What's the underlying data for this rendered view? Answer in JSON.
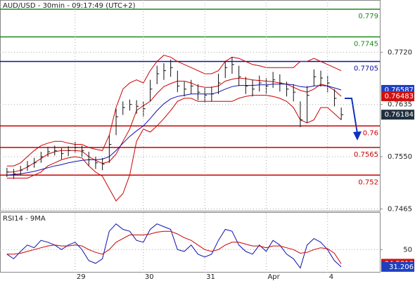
{
  "chart_data": [
    {
      "type": "ohlc",
      "title": "AUD/USD - 30min - 09:17:49 (UTC+2)",
      "ylim": [
        0.7462,
        0.7805
      ],
      "yticks": [
        {
          "value": 0.7465,
          "label": "0.7465"
        },
        {
          "value": 0.755,
          "label": "0.7550"
        },
        {
          "value": 0.7635,
          "label": "0.7635"
        },
        {
          "value": 0.772,
          "label": "0.7720"
        }
      ],
      "grid": true,
      "bar_color": "#111111",
      "high": [
        0.7532,
        0.753,
        0.7535,
        0.7543,
        0.7548,
        0.7558,
        0.7566,
        0.7568,
        0.7564,
        0.7567,
        0.7574,
        0.7568,
        0.7558,
        0.755,
        0.7548,
        0.7585,
        0.7628,
        0.764,
        0.7643,
        0.7642,
        0.764,
        0.7675,
        0.7698,
        0.7702,
        0.7708,
        0.769,
        0.7672,
        0.7675,
        0.7668,
        0.7662,
        0.7664,
        0.7685,
        0.7706,
        0.7712,
        0.7698,
        0.768,
        0.7675,
        0.7682,
        0.7678,
        0.7688,
        0.7684,
        0.7672,
        0.7668,
        0.764,
        0.7665,
        0.7692,
        0.769,
        0.7682,
        0.766,
        0.763
      ],
      "low": [
        0.7517,
        0.7514,
        0.752,
        0.7527,
        0.7532,
        0.754,
        0.755,
        0.7552,
        0.7546,
        0.7551,
        0.7556,
        0.755,
        0.7535,
        0.753,
        0.7528,
        0.754,
        0.7585,
        0.7618,
        0.7625,
        0.762,
        0.7615,
        0.764,
        0.7668,
        0.7675,
        0.768,
        0.7655,
        0.7648,
        0.7652,
        0.7642,
        0.7638,
        0.764,
        0.7652,
        0.7678,
        0.7685,
        0.7665,
        0.7652,
        0.7648,
        0.7656,
        0.7652,
        0.7662,
        0.7656,
        0.7648,
        0.764,
        0.7598,
        0.7605,
        0.7665,
        0.7664,
        0.7655,
        0.7632,
        0.761
      ],
      "close": [
        0.7525,
        0.7522,
        0.7528,
        0.7535,
        0.754,
        0.755,
        0.7558,
        0.756,
        0.7555,
        0.756,
        0.7565,
        0.756,
        0.7545,
        0.754,
        0.7538,
        0.757,
        0.7615,
        0.763,
        0.7635,
        0.7632,
        0.7628,
        0.766,
        0.7685,
        0.769,
        0.7695,
        0.7665,
        0.766,
        0.7665,
        0.7655,
        0.765,
        0.7652,
        0.767,
        0.7695,
        0.77,
        0.768,
        0.7665,
        0.766,
        0.767,
        0.7665,
        0.7675,
        0.767,
        0.766,
        0.7655,
        0.761,
        0.765,
        0.768,
        0.7678,
        0.767,
        0.7645,
        0.76184
      ],
      "series": [
        {
          "color": "#cc0000",
          "values": [
            0.7535,
            0.7535,
            0.754,
            0.755,
            0.756,
            0.7568,
            0.7572,
            0.7575,
            0.7575,
            0.7572,
            0.757,
            0.757,
            0.7565,
            0.7562,
            0.756,
            0.7585,
            0.763,
            0.766,
            0.767,
            0.7675,
            0.767,
            0.769,
            0.7705,
            0.7715,
            0.7712,
            0.7705,
            0.77,
            0.7695,
            0.769,
            0.7685,
            0.7685,
            0.769,
            0.7705,
            0.7712,
            0.771,
            0.7705,
            0.77,
            0.7698,
            0.7695,
            0.7695,
            0.7695,
            0.7695,
            0.7695,
            0.7705,
            0.7705,
            0.771,
            0.7705,
            0.77,
            0.7695,
            0.769
          ]
        },
        {
          "color": "#cc0000",
          "values": [
            0.7525,
            0.7525,
            0.7528,
            0.7533,
            0.754,
            0.7547,
            0.7554,
            0.7558,
            0.756,
            0.756,
            0.756,
            0.7559,
            0.755,
            0.7544,
            0.7539,
            0.7542,
            0.7554,
            0.7575,
            0.7595,
            0.7625,
            0.7633,
            0.764,
            0.7653,
            0.7664,
            0.7669,
            0.7673,
            0.7673,
            0.767,
            0.7665,
            0.7663,
            0.7663,
            0.7665,
            0.7673,
            0.7676,
            0.7678,
            0.7677,
            0.7675,
            0.7674,
            0.7673,
            0.7672,
            0.767,
            0.7668,
            0.7663,
            0.7658,
            0.7655,
            0.766,
            0.7668,
            0.7665,
            0.7658,
            0.76483
          ]
        },
        {
          "color": "#cc0000",
          "values": [
            0.7515,
            0.7515,
            0.7515,
            0.7515,
            0.752,
            0.7525,
            0.7535,
            0.754,
            0.7545,
            0.7548,
            0.755,
            0.7548,
            0.7535,
            0.7525,
            0.7518,
            0.7498,
            0.7478,
            0.749,
            0.752,
            0.7575,
            0.7595,
            0.759,
            0.76,
            0.7612,
            0.7625,
            0.764,
            0.7645,
            0.7645,
            0.764,
            0.764,
            0.764,
            0.764,
            0.764,
            0.764,
            0.7645,
            0.7648,
            0.765,
            0.765,
            0.765,
            0.7648,
            0.7645,
            0.764,
            0.763,
            0.761,
            0.7605,
            0.761,
            0.763,
            0.763,
            0.762,
            0.761
          ]
        },
        {
          "color": "#1010b0",
          "values": [
            0.752,
            0.7521,
            0.7522,
            0.7524,
            0.7526,
            0.7529,
            0.7532,
            0.7535,
            0.7537,
            0.754,
            0.7542,
            0.7544,
            0.7545,
            0.7545,
            0.7546,
            0.755,
            0.756,
            0.7572,
            0.7583,
            0.7592,
            0.76,
            0.7612,
            0.7625,
            0.7636,
            0.7644,
            0.7648,
            0.765,
            0.7652,
            0.7652,
            0.7652,
            0.7652,
            0.7655,
            0.766,
            0.7664,
            0.7666,
            0.7666,
            0.7666,
            0.7667,
            0.7667,
            0.7668,
            0.7668,
            0.7668,
            0.7667,
            0.7664,
            0.7663,
            0.7665,
            0.7666,
            0.7665,
            0.7662,
            0.76587
          ]
        }
      ],
      "levels": [
        {
          "value": 0.779,
          "color": "#1a8a1a"
        },
        {
          "value": 0.7745,
          "color": "#1a8a1a"
        },
        {
          "value": 0.7705,
          "color": "#1010a0"
        },
        {
          "value": 0.76,
          "color": "#cc0000"
        },
        {
          "value": 0.7565,
          "color": "#cc0000"
        },
        {
          "value": 0.752,
          "color": "#cc0000"
        }
      ]
    },
    {
      "type": "line",
      "title": "RSI14 - 9MA",
      "ylim": [
        25,
        90
      ],
      "yticks": [
        50
      ],
      "grid": true,
      "categories": [
        null,
        null,
        null,
        null,
        null,
        null,
        null,
        null,
        null,
        null,
        "29",
        null,
        null,
        null,
        null,
        null,
        null,
        null,
        null,
        null,
        "30",
        null,
        null,
        null,
        null,
        null,
        null,
        null,
        null,
        "31",
        null,
        null,
        null,
        null,
        null,
        null,
        null,
        null,
        "Apr",
        null,
        null,
        null,
        null,
        null,
        null,
        null,
        null,
        "4",
        null,
        null
      ],
      "series": [
        {
          "color": "#1010b0",
          "values": [
            45,
            40,
            48,
            55,
            52,
            60,
            58,
            55,
            50,
            55,
            58,
            50,
            38,
            35,
            40,
            70,
            78,
            72,
            70,
            60,
            58,
            72,
            78,
            75,
            72,
            50,
            48,
            55,
            45,
            42,
            45,
            60,
            72,
            70,
            55,
            48,
            45,
            55,
            48,
            60,
            55,
            45,
            40,
            30,
            55,
            62,
            58,
            50,
            38,
            31.206
          ]
        },
        {
          "color": "#cc0000",
          "values": [
            45,
            45,
            46,
            48,
            50,
            52,
            54,
            55,
            54,
            54,
            55,
            54,
            50,
            47,
            45,
            50,
            58,
            62,
            66,
            66,
            66,
            67,
            69,
            70,
            70,
            67,
            63,
            60,
            55,
            50,
            48,
            50,
            55,
            58,
            58,
            56,
            54,
            54,
            52,
            54,
            54,
            52,
            50,
            46,
            47,
            50,
            52,
            51,
            46,
            34.5818
          ]
        }
      ]
    }
  ]
}
